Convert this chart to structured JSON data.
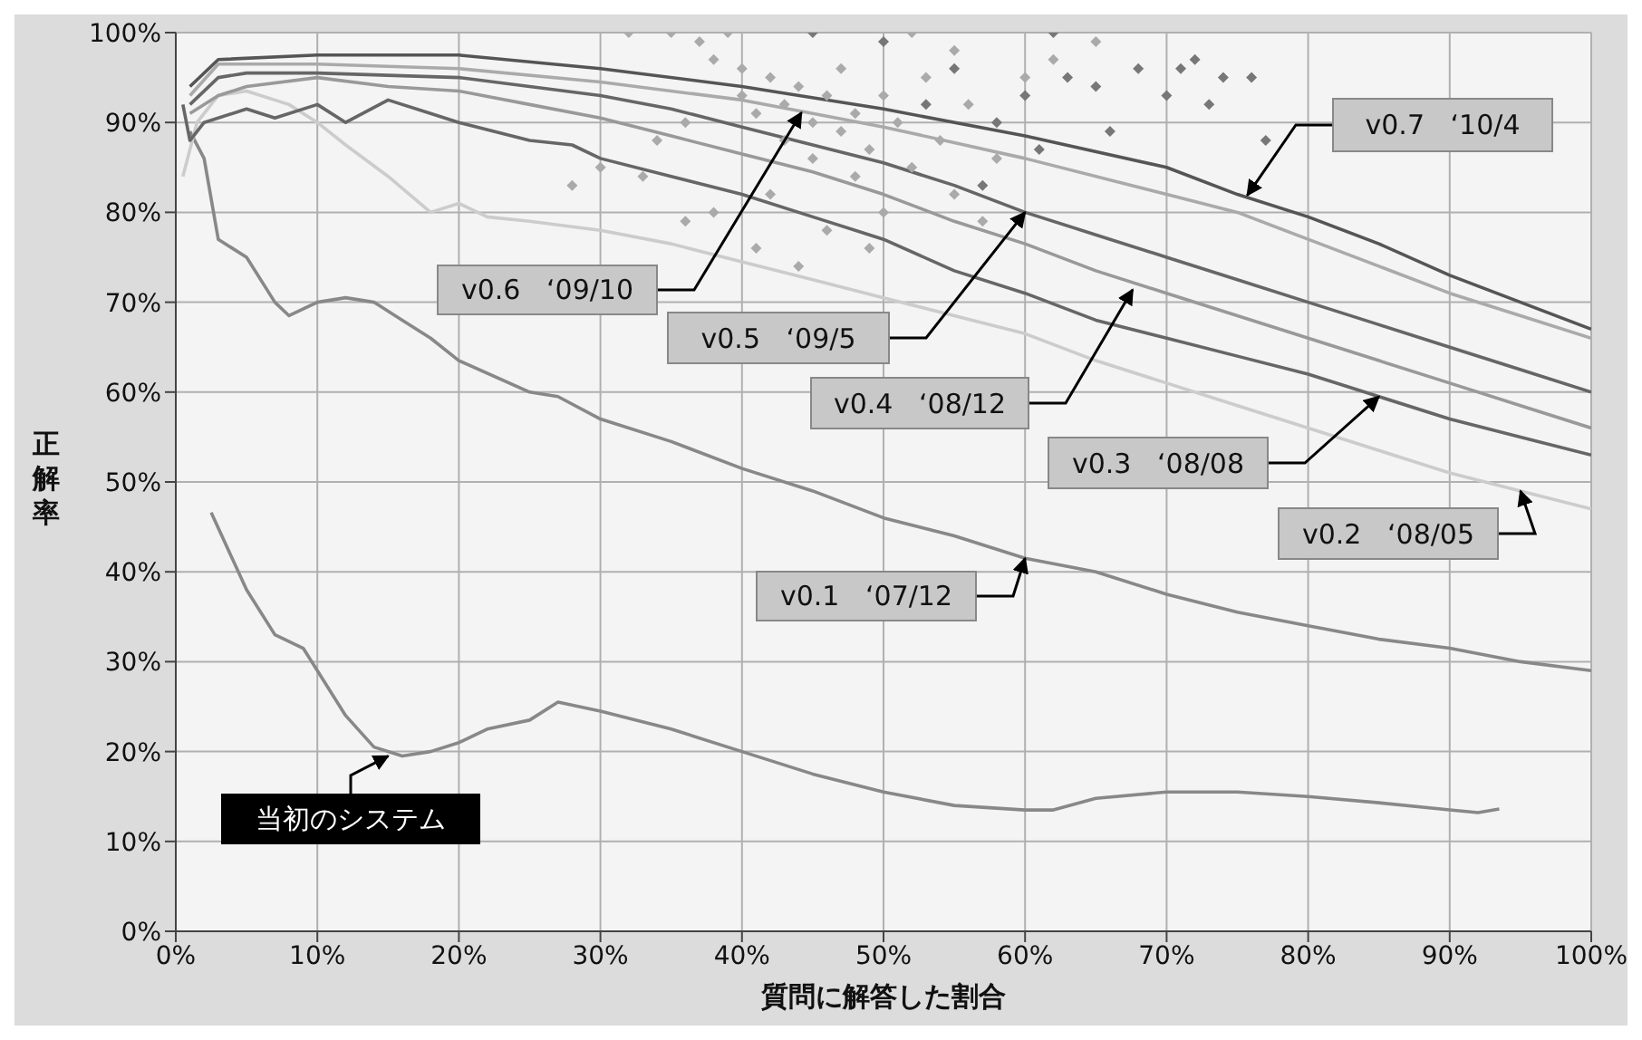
{
  "chart_data": {
    "type": "line",
    "xlabel": "質問に解答した割合",
    "ylabel": "正解率",
    "xlim": [
      0,
      100
    ],
    "ylim": [
      0,
      100
    ],
    "xticks": [
      {
        "value": 0,
        "label": "0%"
      },
      {
        "value": 10,
        "label": "10%"
      },
      {
        "value": 20,
        "label": "20%"
      },
      {
        "value": 30,
        "label": "30%"
      },
      {
        "value": 40,
        "label": "40%"
      },
      {
        "value": 50,
        "label": "50%"
      },
      {
        "value": 60,
        "label": "60%"
      },
      {
        "value": 70,
        "label": "70%"
      },
      {
        "value": 80,
        "label": "80%"
      },
      {
        "value": 90,
        "label": "90%"
      },
      {
        "value": 100,
        "label": "100%"
      }
    ],
    "yticks": [
      {
        "value": 0,
        "label": "0%"
      },
      {
        "value": 10,
        "label": "10%"
      },
      {
        "value": 20,
        "label": "20%"
      },
      {
        "value": 30,
        "label": "30%"
      },
      {
        "value": 40,
        "label": "40%"
      },
      {
        "value": 50,
        "label": "50%"
      },
      {
        "value": 60,
        "label": "60%"
      },
      {
        "value": 70,
        "label": "70%"
      },
      {
        "value": 80,
        "label": "80%"
      },
      {
        "value": 90,
        "label": "90%"
      },
      {
        "value": 100,
        "label": "100%"
      }
    ],
    "grid": true,
    "line_style": "solid",
    "series": [
      {
        "type": "scatter",
        "marker": "diamond",
        "color": "#aaaaaa",
        "x": [
          32,
          35,
          37,
          38,
          40,
          40,
          41,
          42,
          43,
          43,
          44,
          45,
          45,
          46,
          47,
          47,
          48,
          48,
          49,
          50,
          50,
          51,
          52,
          53,
          54,
          55,
          56,
          58,
          60,
          30,
          33,
          36,
          38,
          41,
          42,
          46,
          44,
          49,
          52,
          55,
          62,
          65,
          39,
          36,
          34,
          57,
          28
        ],
        "values": [
          100,
          100,
          99,
          97,
          96,
          93,
          91,
          95,
          92,
          88,
          94,
          90,
          86,
          93,
          89,
          96,
          91,
          84,
          87,
          93,
          80,
          90,
          85,
          95,
          88,
          82,
          92,
          86,
          95,
          85,
          84,
          79,
          80,
          76,
          82,
          78,
          74,
          76,
          100,
          98,
          97,
          99,
          100,
          90,
          88,
          79,
          83
        ]
      },
      {
        "type": "scatter",
        "marker": "diamond",
        "color": "#777777",
        "x": [
          50,
          53,
          55,
          58,
          60,
          62,
          63,
          65,
          68,
          70,
          72,
          74,
          76,
          77,
          66,
          61,
          57,
          45,
          71,
          73
        ],
        "values": [
          99,
          92,
          96,
          90,
          93,
          100,
          95,
          94,
          96,
          93,
          97,
          95,
          95,
          88,
          89,
          87,
          83,
          100,
          96,
          92
        ]
      },
      {
        "color": "#888888",
        "x": [
          2.5,
          5,
          7,
          9,
          10,
          12,
          14,
          16,
          18,
          20,
          22,
          25,
          27,
          30,
          35,
          40,
          45,
          50,
          55,
          60,
          62,
          65,
          70,
          75,
          80,
          85,
          90,
          92,
          93.5
        ],
        "values": [
          46.6,
          38,
          33,
          31.5,
          29,
          24,
          20.5,
          19.5,
          20,
          21,
          22.5,
          23.5,
          25.5,
          24.5,
          22.5,
          20,
          17.5,
          15.5,
          14,
          13.5,
          13.5,
          14.8,
          15.5,
          15.5,
          15,
          14.3,
          13.5,
          13.2,
          13.6
        ]
      },
      {
        "color": "#888888",
        "x": [
          1,
          2,
          3,
          5,
          7,
          8,
          10,
          12,
          14,
          16,
          18,
          20,
          25,
          27,
          30,
          35,
          40,
          45,
          50,
          55,
          60,
          65,
          70,
          75,
          80,
          85,
          90,
          95,
          100
        ],
        "values": [
          89,
          86,
          77,
          75,
          70,
          68.5,
          70,
          70.5,
          70,
          68,
          66,
          63.5,
          60,
          59.5,
          57,
          54.5,
          51.5,
          49,
          46,
          44,
          41.5,
          40,
          37.5,
          35.5,
          34,
          32.5,
          31.5,
          30,
          29
        ]
      },
      {
        "color": "#cccccc",
        "x": [
          0.5,
          1.5,
          3,
          5,
          8,
          10,
          12,
          15,
          18,
          20,
          22,
          25,
          30,
          35,
          40,
          45,
          50,
          55,
          60,
          65,
          70,
          75,
          80,
          85,
          90,
          95,
          100
        ],
        "values": [
          84,
          90,
          93,
          93.5,
          92,
          90,
          87.5,
          84,
          80,
          81,
          79.5,
          79,
          78,
          76.5,
          74.5,
          72.5,
          70.5,
          68.5,
          66.5,
          63.5,
          61,
          58.5,
          56,
          53.5,
          51,
          49,
          47
        ]
      },
      {
        "color": "#666666",
        "x": [
          0.5,
          1,
          2,
          5,
          7,
          10,
          12,
          15,
          18,
          20,
          25,
          28,
          30,
          35,
          40,
          45,
          50,
          55,
          60,
          65,
          70,
          75,
          80,
          85,
          90,
          95,
          100
        ],
        "values": [
          92,
          88,
          90,
          91.5,
          90.5,
          92,
          90,
          92.5,
          91,
          90,
          88,
          87.5,
          86,
          84,
          82,
          79.5,
          77,
          73.5,
          71,
          68,
          66,
          64,
          62,
          59.5,
          57,
          55,
          53
        ]
      },
      {
        "color": "#999999",
        "x": [
          1,
          3,
          5,
          10,
          15,
          20,
          25,
          30,
          35,
          40,
          45,
          50,
          55,
          60,
          65,
          70,
          75,
          80,
          85,
          90,
          95,
          100
        ],
        "values": [
          91,
          93,
          94,
          95,
          94,
          93.5,
          92,
          90.5,
          88.5,
          86.5,
          84.5,
          82,
          79,
          76.5,
          73.5,
          71,
          68.5,
          66,
          63.5,
          61,
          58.5,
          56
        ]
      },
      {
        "color": "#666666",
        "x": [
          1,
          3,
          5,
          10,
          20,
          25,
          30,
          35,
          40,
          45,
          50,
          55,
          60,
          65,
          70,
          75,
          80,
          85,
          90,
          95,
          100
        ],
        "values": [
          92,
          95,
          95.5,
          95.5,
          95,
          94,
          93,
          91.5,
          89.5,
          87.5,
          85.5,
          83,
          80,
          77.5,
          75,
          72.5,
          70,
          67.5,
          65,
          62.5,
          60
        ]
      },
      {
        "color": "#aaaaaa",
        "x": [
          1,
          3,
          10,
          20,
          30,
          40,
          45,
          50,
          60,
          70,
          75,
          80,
          85,
          90,
          95,
          100
        ],
        "values": [
          93,
          96.5,
          96.5,
          96,
          94.5,
          92.5,
          91,
          89.5,
          86,
          82,
          80,
          77,
          74,
          71,
          68.5,
          66
        ]
      },
      {
        "color": "#555555",
        "x": [
          1,
          3,
          10,
          20,
          30,
          40,
          50,
          60,
          70,
          75,
          80,
          85,
          90,
          95,
          100
        ],
        "values": [
          94,
          97,
          97.5,
          97.5,
          96,
          94,
          91.5,
          88.5,
          85,
          82,
          79.5,
          76.5,
          73,
          70,
          67
        ]
      }
    ],
    "annotations": [
      {
        "text": "当初のシステム",
        "x": 15,
        "y": 19.5
      },
      {
        "text": "v0.1   ‘07/12",
        "x": 60,
        "y": 41.5
      },
      {
        "text": "v0.2   ‘08/05",
        "x": 95,
        "y": 49
      },
      {
        "text": "v0.3   ‘08/08",
        "x": 85,
        "y": 59.5
      },
      {
        "text": "v0.4   ‘08/12",
        "x": 67.6,
        "y": 71.4
      },
      {
        "text": "v0.5   ‘09/5",
        "x": 60,
        "y": 80
      },
      {
        "text": "v0.6   ‘09/10",
        "x": 44.2,
        "y": 91.1
      },
      {
        "text": "v0.7   ‘10/4",
        "x": 75.7,
        "y": 81.9
      }
    ]
  }
}
